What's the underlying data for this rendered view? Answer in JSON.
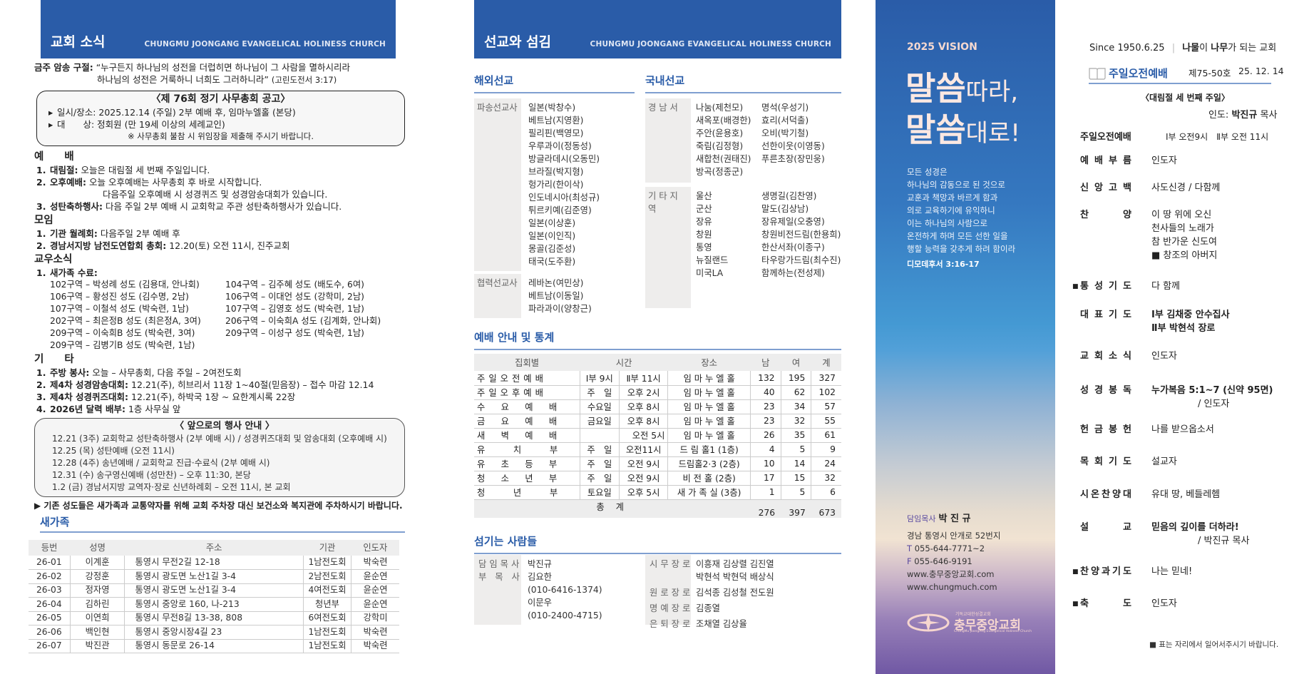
{
  "colors": {
    "brand_blue": "#2a5ca8",
    "section_line": "#7f9fd0",
    "accent_purple": "#5a4aa0"
  },
  "left": {
    "header_title": "교회 소식",
    "header_sub": "CHUNGMU JOONGANG EVANGELICAL HOLINESS CHURCH",
    "verse": {
      "label": "금주 암송 구절:",
      "line1": "“누구든지 하나님의 성전을 더럽히면 하나님이 그 사람을 멸하시리라",
      "line2": "하나님의 성전은 거룩하니 너희도 그러하니라”",
      "ref": "(고린도전서 3:17)"
    },
    "notice_box": {
      "title": "〈제 76회 정기 사무총회 공고〉",
      "rows": [
        "일시/장소:  2025.12.14 (주일) 2부 예배 후, 임마누엘홀 (본당)",
        "대　　상:  정회원 (만 19세 이상의 세례교인)"
      ],
      "note": "※ 사무총회 불참 시 위임장을 제출해 주시기 바랍니다."
    },
    "worship": {
      "title": "예　　배",
      "items": [
        {
          "num": "1.",
          "label": "대림절:",
          "text": "오늘은 대림절 세 번째 주일입니다."
        },
        {
          "num": "2.",
          "label": "오후예배:",
          "text": "오늘 오후예배는 사무총회 후 바로 시작합니다.",
          "cont": "다음주일 오후예배 시 성경퀴즈 및 성경암송대회가 있습니다."
        },
        {
          "num": "3.",
          "label": "성탄축하행사:",
          "text": "다음 주일 2부 예배 시 교회학교 주관 성탄축하행사가 있습니다."
        }
      ]
    },
    "meeting": {
      "title": "모임",
      "items": [
        {
          "num": "1.",
          "label": "기관 월례회:",
          "text": "다음주일 2부 예배 후"
        },
        {
          "num": "2.",
          "label": "경남서지방 남전도연합회 총회:",
          "text": "12.20(토) 오전 11시, 진주교회"
        }
      ]
    },
    "members": {
      "title": "교우소식",
      "item": {
        "num": "1.",
        "label": "새가족 수료:"
      },
      "entries": [
        "102구역 – 박성례 성도 (김용대, 안나회)",
        "104구역 – 김주혜 성도 (배도수, 6여)",
        "106구역 – 황성진 성도 (김수명, 2남)",
        "106구역 – 이대언 성도 (강학미, 2남)",
        "107구역 – 이철석 성도 (박숙련, 1남)",
        "107구역 – 김영호 성도 (박숙련, 1남)",
        "202구역 – 최은정B 성도 (최은정A, 3여)",
        "206구역 – 이숙희A 성도 (김계화, 안나회)",
        "209구역 – 이숙희B 성도 (박숙련, 3여)",
        "209구역 – 이성구 성도 (박숙련, 1남)",
        "209구역 – 김병기B 성도 (박숙련, 1남)"
      ]
    },
    "etc": {
      "title": "기　　타",
      "items": [
        {
          "num": "1.",
          "label": "주방 봉사:",
          "text": "오늘 – 사무총회,  다음 주일 – 2여전도회"
        },
        {
          "num": "2.",
          "label": "제4차 성경암송대회:",
          "text": "12.21(주), 히브리서 11장 1~40절(믿음장) – 접수 마감 12.14"
        },
        {
          "num": "3.",
          "label": "제4차 성경퀴즈대회:",
          "text": "12.21(주), 하박국 1장 ~ 요한계시록 22장"
        },
        {
          "num": "4.",
          "label": "2026년 달력 배부:",
          "text": "1층 사무실 앞"
        }
      ]
    },
    "events": {
      "title": "〈 앞으로의 행사 안내 〉",
      "items": [
        "12.21 (3주)  교회학교 성탄축하행사 (2부 예배 시)  /  성경퀴즈대회 및 암송대회 (오후예배 시)",
        "12.25 (목)  성탄예배 (오전 11시)",
        "12.28 (4주)  송년예배 / 교회학교 진급·수료식 (2부 예배 시)",
        "12.31 (수)  송구영신예배 (성만찬) – 오후 11:30,  본당",
        "1.2 (금)  경남서지방 교역자·장로 신년하례회 – 오전 11시,  본 교회"
      ]
    },
    "parking_notice": "▶ 기존 성도들은 새가족과 교통약자를 위해 교회 주차장 대신 보건소와 복지관에 주차하시기 바랍니다.",
    "new_family": {
      "title": "새가족",
      "columns": [
        "등번",
        "성명",
        "주소",
        "기관",
        "인도자"
      ],
      "rows": [
        [
          "26-01",
          "이계훈",
          "통영시 무전2길 12-18",
          "1남전도회",
          "박숙련"
        ],
        [
          "26-02",
          "강정훈",
          "통영시 광도면 노산1길 3-4",
          "2남전도회",
          "윤순연"
        ],
        [
          "26-03",
          "정자영",
          "통영시 광도면 노산1길 3-4",
          "4여전도회",
          "윤순연"
        ],
        [
          "26-04",
          "김하린",
          "통영시 중앙로 160, 나-213",
          "청년부",
          "윤순연"
        ],
        [
          "26-05",
          "이연희",
          "통영시 무전8길 13-38, 808",
          "6여전도회",
          "강학미"
        ],
        [
          "26-06",
          "백인현",
          "통영시 중앙시장4길 23",
          "1남전도회",
          "박숙련"
        ],
        [
          "26-07",
          "박진관",
          "통영시 동문로 26-14",
          "1남전도회",
          "박숙련"
        ]
      ]
    }
  },
  "middle": {
    "header_title": "선교와 섬김",
    "header_sub": "CHUNGMU JOONGANG EVANGELICAL HOLINESS CHURCH",
    "overseas": {
      "title": "해외선교",
      "groups": [
        {
          "label": "파송선교사",
          "items": [
            "일본(박창수)",
            "베트남(지영환)",
            "필리핀(백영모)",
            "우루과이(정동성)",
            "방글라데시(오동민)",
            "브라질(박지형)",
            "헝가리(한이삭)",
            "인도네시아(최성규)",
            "튀르키예(김준영)",
            "일본(이상훈)",
            "일본(이인직)",
            "몽골(김준성)",
            "태국(도주환)"
          ]
        },
        {
          "label": "협력선교사",
          "items": [
            "레바논(여민상)",
            "베트남(이동일)",
            "파라과이(양창근)"
          ]
        }
      ]
    },
    "domestic": {
      "title": "국내선교",
      "groups": [
        {
          "label": "경 남 서",
          "col1": [
            "나눔(제천모)",
            "새옥포(배경한)",
            "주안(윤용호)",
            "죽림(김정형)",
            "새합천(권태진)",
            "방곡(정종군)"
          ],
          "col2": [
            "명석(우성기)",
            "효리(서덕출)",
            "오비(박기철)",
            "선한이웃(이영동)",
            "푸른초장(장민웅)"
          ]
        },
        {
          "label": "기 타 지 역",
          "col1": [
            "울산",
            "군산",
            "장유",
            "창원",
            "통영",
            "뉴질랜드",
            "미국LA"
          ],
          "col2": [
            "생명길(김찬영)",
            "말도(김상남)",
            "장유제일(오충영)",
            "창원비전드림(한용희)",
            "한산서좌(이종구)",
            "타우랑가드림(최수진)",
            "함께하는(전성제)"
          ]
        }
      ]
    },
    "stats": {
      "title": "예배 안내 및 통계",
      "columns": [
        "집회별",
        "시간",
        "장소",
        "남",
        "여",
        "계"
      ],
      "rows": [
        [
          "주일오전예배",
          "Ⅰ부 9시",
          "Ⅱ부 11시",
          "임 마 누 엘 홀",
          "132",
          "195",
          "327"
        ],
        [
          "주일오후예배",
          "주　일",
          "오후 2시",
          "임 마 누 엘 홀",
          "40",
          "62",
          "102"
        ],
        [
          "수　요　예　배",
          "수요일",
          "오후 8시",
          "임 마 누 엘 홀",
          "23",
          "34",
          "57"
        ],
        [
          "금　요　예　배",
          "금요일",
          "오후 8시",
          "임 마 누 엘 홀",
          "23",
          "32",
          "55"
        ],
        [
          "새　벽　예　배",
          "",
          "오전 5시",
          "임 마 누 엘 홀",
          "26",
          "35",
          "61"
        ],
        [
          "유　　치　　부",
          "주　일",
          "오전11시",
          "드 림 홀1 (1층)",
          "4",
          "5",
          "9"
        ],
        [
          "유　초　등　부",
          "주　일",
          "오전 9시",
          "드림홀2·3 (2층)",
          "10",
          "14",
          "24"
        ],
        [
          "청　소　년　부",
          "주　일",
          "오전 9시",
          "비 전 홀 (2층)",
          "17",
          "15",
          "32"
        ],
        [
          "청　　년　　부",
          "토요일",
          "오후 5시",
          "새 가 족 실 (3층)",
          "1",
          "5",
          "6"
        ]
      ],
      "total": {
        "label": "총 계",
        "male": "276",
        "female": "397",
        "sum": "673"
      }
    },
    "servants": {
      "title": "섬기는 사람들",
      "left": [
        {
          "label": "담임목사",
          "lines": [
            "박진규"
          ]
        },
        {
          "label": "부 목 사",
          "lines": [
            "김요한",
            "(010-6416-1374)",
            "이문우",
            "(010-2400-4715)"
          ]
        }
      ],
      "right": [
        {
          "label": "시무장로",
          "lines": [
            "이흥재  김상렬  김진열",
            "박현석  박현덕  배상식"
          ]
        },
        {
          "label": "원로장로",
          "lines": [
            "김석종  김성철  전도원"
          ]
        },
        {
          "label": "명예장로",
          "lines": [
            "김종열"
          ]
        },
        {
          "label": "은퇴장로",
          "lines": [
            "조채열  김상율"
          ]
        }
      ]
    }
  },
  "vision": {
    "title": "2025 VISION",
    "slogan1_big": "말씀",
    "slogan1_small": "따라,",
    "slogan2_big": "말씀",
    "slogan2_small": "대로!",
    "verse_lines": [
      "모든 성경은",
      "하나님의 감동으로 된 것으로",
      "교훈과 책망과 바르게 함과",
      "의로 교육하기에 유익하니",
      "이는 하나님의 사람으로",
      "온전하게 하며 모든 선한 일을",
      "행할 능력을 갖추게 하려 함이라"
    ],
    "verse_ref": "디모데후서 3:16-17",
    "pastor_label": "담임목사",
    "pastor_name": "박 진 규",
    "address": "경남 통영시 안개로 52번지",
    "tel_label": "T",
    "tel": "055-644-7771~2",
    "fax_label": "F",
    "fax": "055-646-9191",
    "web1": "www.충무중앙교회.com",
    "web2": "www.chungmuch.com",
    "logo_small": "기독교대한성결교회",
    "logo_name": "충무중앙교회",
    "logo_en": "ChungMu JoongAng Evangelical Holiness Church"
  },
  "right": {
    "since": "Since 1950.6.25",
    "motto_a": "나물",
    "motto_b": "이 ",
    "motto_c": "나무",
    "motto_d": "가 되는 교회",
    "service_title": "주일오전예배",
    "issue": "제75-50호",
    "date": "25. 12. 14",
    "subtitle": "〈대림절 세 번째 주일〉",
    "leader_label": "인도:",
    "leader_name": "박진규",
    "leader_title": "목사",
    "order": [
      {
        "label": "주일오전예배",
        "value": "Ⅰ부 오전9시　Ⅱ부 오전 11시"
      },
      {
        "label": "예배부름",
        "value": "인도자"
      },
      {
        "label": "신앙고백",
        "value": "사도신경 / 다함께"
      },
      {
        "label": "찬양",
        "lines": [
          "이 땅 위에 오신",
          "천사들의 노래가",
          "참 반가운 신도여",
          "■ 창조의 아버지"
        ]
      },
      {
        "label": "통성기도",
        "value": "다 함께",
        "stand": true
      },
      {
        "label": "대표기도",
        "lines": [
          "Ⅰ부  김채중 안수집사",
          "Ⅱ부  박현석 장로"
        ]
      },
      {
        "label": "교회소식",
        "value": "인도자"
      },
      {
        "label": "성경봉독",
        "lines": [
          "누가복음 5:1~7 (신약 95면)",
          "　　　　　/ 인도자"
        ]
      },
      {
        "label": "헌금봉헌",
        "value": "나를 받으옵소서"
      },
      {
        "label": "목회기도",
        "value": "설교자"
      },
      {
        "label": "시온찬양대",
        "value": "유대 땅, 베들레헴"
      },
      {
        "label": "설교",
        "lines": [
          "믿음의 깊이를 더하라!",
          "　　　　　/ 박진규 목사"
        ]
      },
      {
        "label": "찬양과기도",
        "value": "나는 믿네!",
        "stand": true
      },
      {
        "label": "축도",
        "value": "인도자",
        "stand": true
      }
    ],
    "footnote": "■ 표는 자리에서 일어서주시기 바랍니다."
  }
}
